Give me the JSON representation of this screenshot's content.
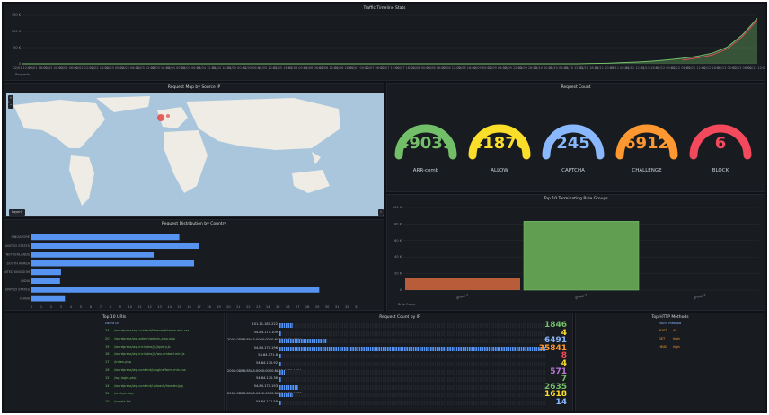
{
  "colors": {
    "green": "#73bf69",
    "yellow": "#fade2a",
    "blue": "#8ab8ff",
    "orange": "#ff9830",
    "red": "#f2495c",
    "bar": "#5794f2",
    "dark_red": "#b85c3a",
    "dark_green": "#629e51"
  },
  "traffic": {
    "title": "Traffic Timeline Stats",
    "yticks": [
      "150 K",
      "100 K",
      "50 K",
      "0"
    ],
    "xticks": [
      "02/01 12:00",
      "02/01 18:00",
      "02/02 00:00",
      "02/02 06:00",
      "02/02 12:00",
      "02/02 18:00",
      "02/03 00:00",
      "02/03 06:00",
      "02/03 12:00",
      "02/03 18:00",
      "02/04 00:00",
      "02/04 06:00",
      "02/04 12:00",
      "02/04 18:00",
      "02/05 00:00",
      "02/05 06:00",
      "02/05 12:00",
      "02/05 18:00",
      "02/06 00:00",
      "02/06 06:00",
      "02/06 12:00",
      "02/06 18:00",
      "02/07 00:00",
      "02/07 06:00",
      "02/07 12:00",
      "02/07 18:00",
      "02/08 00:00",
      "02/08 06:00",
      "02/08 12:00",
      "02/08 18:00",
      "02/09 00:00",
      "02/09 06:00",
      "02/09 12:00",
      "02/09 18:00",
      "02/10 00:00",
      "02/10 06:00",
      "02/10 12:00",
      "02/10 18:00",
      "02/11 00:00",
      "02/11 06:00",
      "02/11 12:00",
      "02/11 18:00",
      "02/12 00:00",
      "02/12 06:00",
      "02/12 12:00",
      "02/12 18:00",
      "02/13 00:00",
      "02/13 06:00",
      "02/13 12:00"
    ],
    "legend": "Requests",
    "chart_data": {
      "type": "area",
      "values": [
        0,
        0,
        0,
        0,
        0,
        0,
        0,
        0,
        0,
        0,
        0,
        0,
        0,
        0,
        0,
        0,
        0,
        0,
        0,
        0,
        0,
        0,
        0,
        0,
        0,
        0,
        0,
        0,
        0,
        0,
        0,
        0,
        0,
        0,
        0,
        0,
        0,
        0,
        1000,
        2000,
        4000,
        6000,
        9000,
        13000,
        18000,
        25000,
        35000,
        55000,
        95000,
        150000
      ],
      "ylim": [
        0,
        160000
      ]
    }
  },
  "map": {
    "title": "Request Map by Source IP",
    "btn": "Layer1"
  },
  "gauges": {
    "title": "Request Count",
    "items": [
      {
        "value": "49039",
        "label": "ARR-comb",
        "color": "#73bf69"
      },
      {
        "value": "41876",
        "label": "ALLOW",
        "color": "#fade2a"
      },
      {
        "value": "245",
        "label": "CAPTCHA",
        "color": "#8ab8ff"
      },
      {
        "value": "6912",
        "label": "CHALLENGE",
        "color": "#ff9830"
      },
      {
        "value": "6",
        "label": "BLOCK",
        "color": "#f2495c"
      }
    ]
  },
  "country": {
    "title": "Request Distribution by Country",
    "chart_data": {
      "type": "bar",
      "categories": [
        "SINGAPORE",
        "UNITED STATES",
        "NETHERLANDS",
        "SOUTH KOREA",
        "UNITED KINGDOM",
        "INDIA",
        "UNITED STATES",
        "CHINA"
      ],
      "values": [
        15,
        17,
        12.4,
        16.5,
        3,
        2.9,
        29.2,
        3.4
      ],
      "xlim": [
        0,
        35
      ]
    },
    "xticks": [
      "0",
      "1",
      "2",
      "3",
      "4",
      "5",
      "6",
      "7",
      "8",
      "9",
      "10",
      "11",
      "12",
      "13",
      "14",
      "15",
      "16",
      "17",
      "18",
      "19",
      "20",
      "21",
      "22",
      "23",
      "24",
      "25",
      "26",
      "27",
      "28",
      "29",
      "30",
      "31",
      "32",
      "33"
    ]
  },
  "ruleset": {
    "title": "Top 10 Terminating Rule Groups",
    "chart_data": {
      "type": "bar",
      "categories": [
        "group-1",
        "group-2",
        "group-3"
      ],
      "values": [
        17000,
        100000,
        0
      ],
      "ylim": [
        0,
        120000
      ]
    },
    "yticks": [
      "100 K",
      "80 K",
      "60 K",
      "40 K",
      "20 K",
      "0"
    ],
    "xlabels": [
      "group-1",
      "group-2",
      "group-3"
    ],
    "legend": "Rule Group"
  },
  "uris": {
    "title": "Top 10 URIs",
    "header": "count  uri",
    "rows": [
      {
        "n": "24",
        "uri": "/wordpress/wp-content/themes/theme.min.css"
      },
      {
        "n": "20",
        "uri": "/wordpress/wp-admin/admin-ajax.php"
      },
      {
        "n": "19",
        "uri": "/wordpress/wp-includes/js/jquery.js"
      },
      {
        "n": "18",
        "uri": "/wordpress/wp-includes/js/wp-embed.min.js"
      },
      {
        "n": "17",
        "uri": "/index.php"
      },
      {
        "n": "16",
        "uri": "/wordpress/wp-content/plugins/form.min.css"
      },
      {
        "n": "15",
        "uri": "/wp-login.php"
      },
      {
        "n": "14",
        "uri": "/wordpress/wp-content/uploads/header.jpg"
      },
      {
        "n": "12",
        "uri": "/xmlrpc.php"
      },
      {
        "n": "10",
        "uri": "/robots.txt"
      }
    ]
  },
  "ips": {
    "title": "Request Count by IP",
    "rows": [
      {
        "ip": "101.11.181.222",
        "fill": 0.05,
        "value": "1846",
        "color": "#73bf69"
      },
      {
        "ip": "54.84.171.109",
        "fill": 0.0,
        "value": "4",
        "color": "#fade2a"
      },
      {
        "ip": "2001:0DB8:85A3:0000:0000:8A2E:0370:7334",
        "fill": 0.18,
        "value": "6491",
        "color": "#8ab8ff"
      },
      {
        "ip": "54.84.170.196",
        "fill": 1.0,
        "value": "35841",
        "color": "#ff9830"
      },
      {
        "ip": "54.84.171.8",
        "fill": 0.0,
        "value": "8",
        "color": "#f2495c"
      },
      {
        "ip": "54.84.170.92",
        "fill": 0.0,
        "value": "4",
        "color": "#fade2a"
      },
      {
        "ip": "2001:0DB8:85A3:0000:0000:8A2E:0370:1234",
        "fill": 0.02,
        "value": "571",
        "color": "#b877d9"
      },
      {
        "ip": "54.84.170.36",
        "fill": 0.0,
        "value": "7",
        "color": "#73bf69"
      },
      {
        "ip": "54.84.170.193",
        "fill": 0.07,
        "value": "2635",
        "color": "#73bf69"
      },
      {
        "ip": "2001:0DB8:85A3:0000:0000:8A2E:0370:5678",
        "fill": 0.05,
        "value": "1618",
        "color": "#fade2a"
      },
      {
        "ip": "54.84.171.59",
        "fill": 0.0,
        "value": "14",
        "color": "#8ab8ff"
      }
    ]
  },
  "methods": {
    "title": "Top HTTP Methods",
    "header": "count  method",
    "rows": [
      {
        "method": "POST",
        "value": "45"
      },
      {
        "method": "GET",
        "value": "high"
      },
      {
        "method": "HEAD",
        "value": "high"
      }
    ]
  }
}
